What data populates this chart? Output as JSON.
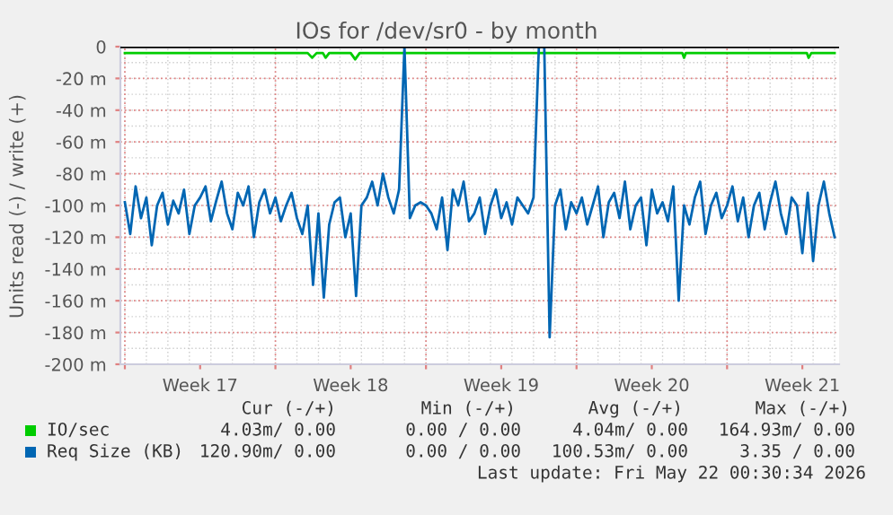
{
  "chart_data": {
    "type": "line",
    "title": "IOs for /dev/sr0 - by month",
    "ylabel": "Units read (-) / write (+)",
    "xlim": [
      "2026-04-19T19:00",
      "2026-05-23T05:00"
    ],
    "ylim": [
      -200,
      0
    ],
    "xticks": [
      {
        "value": "2026-04-20",
        "label": null
      },
      {
        "value": "2026-04-23T12:00",
        "label": "Week 17"
      },
      {
        "value": "2026-04-27",
        "label": null
      },
      {
        "value": "2026-04-30T12:00",
        "label": "Week 18"
      },
      {
        "value": "2026-05-04",
        "label": null
      },
      {
        "value": "2026-05-07T12:00",
        "label": "Week 19"
      },
      {
        "value": "2026-05-11",
        "label": null
      },
      {
        "value": "2026-05-14T12:00",
        "label": "Week 20"
      },
      {
        "value": "2026-05-18",
        "label": null
      },
      {
        "value": "2026-05-21T12:00",
        "label": "Week 21"
      }
    ],
    "yticks": [
      {
        "value": 0,
        "label": "0"
      },
      {
        "value": -20,
        "label": "-20 m"
      },
      {
        "value": -40,
        "label": "-40 m"
      },
      {
        "value": -60,
        "label": "-60 m"
      },
      {
        "value": -80,
        "label": "-80 m"
      },
      {
        "value": -100,
        "label": "-100 m"
      },
      {
        "value": -120,
        "label": "-120 m"
      },
      {
        "value": -140,
        "label": "-140 m"
      },
      {
        "value": -160,
        "label": "-160 m"
      },
      {
        "value": -180,
        "label": "-180 m"
      },
      {
        "value": -200,
        "label": "-200 m"
      }
    ],
    "grid": true,
    "legend": "bottom",
    "marker": "none",
    "line_style": "solid",
    "ref_lines": [
      {
        "axis": "y",
        "value": 0,
        "color": "#000000"
      }
    ],
    "series": [
      {
        "name": "IO/sec",
        "color": "#00cc00",
        "x": [
          "2026-04-20T00:00",
          "2026-04-28T12:00",
          "2026-04-28T17:00",
          "2026-04-28T22:00",
          "2026-04-29T05:00",
          "2026-04-29T08:00",
          "2026-04-29T12:00",
          "2026-04-30T12:00",
          "2026-04-30T17:00",
          "2026-04-30T22:00",
          "2026-05-15T22:00",
          "2026-05-16T00:00",
          "2026-05-16T02:00",
          "2026-05-21T17:00",
          "2026-05-21T19:00",
          "2026-05-21T22:00",
          "2026-05-23T00:00"
        ],
        "values": [
          -4,
          -4,
          -7,
          -4,
          -4,
          -7,
          -4,
          -4,
          -8,
          -4,
          -4,
          -7,
          -4,
          -4,
          -7,
          -4,
          -4
        ]
      },
      {
        "name": "Req Size (KB)",
        "color": "#0066b3",
        "x": [
          "2026-04-20T00:00",
          "2026-04-20T06:00",
          "2026-04-20T12:00",
          "2026-04-20T18:00",
          "2026-04-21T00:00",
          "2026-04-21T06:00",
          "2026-04-21T12:00",
          "2026-04-21T18:00",
          "2026-04-22T00:00",
          "2026-04-22T06:00",
          "2026-04-22T12:00",
          "2026-04-22T18:00",
          "2026-04-23T00:00",
          "2026-04-23T06:00",
          "2026-04-23T12:00",
          "2026-04-23T18:00",
          "2026-04-24T00:00",
          "2026-04-24T06:00",
          "2026-04-24T12:00",
          "2026-04-24T18:00",
          "2026-04-25T00:00",
          "2026-04-25T06:00",
          "2026-04-25T12:00",
          "2026-04-25T18:00",
          "2026-04-26T00:00",
          "2026-04-26T06:00",
          "2026-04-26T12:00",
          "2026-04-26T18:00",
          "2026-04-27T00:00",
          "2026-04-27T06:00",
          "2026-04-27T12:00",
          "2026-04-27T18:00",
          "2026-04-28T00:00",
          "2026-04-28T06:00",
          "2026-04-28T12:00",
          "2026-04-28T18:00",
          "2026-04-29T00:00",
          "2026-04-29T06:00",
          "2026-04-29T12:00",
          "2026-04-29T18:00",
          "2026-04-30T00:00",
          "2026-04-30T06:00",
          "2026-04-30T12:00",
          "2026-04-30T18:00",
          "2026-05-01T00:00",
          "2026-05-01T06:00",
          "2026-05-01T12:00",
          "2026-05-01T18:00",
          "2026-05-02T00:00",
          "2026-05-02T06:00",
          "2026-05-02T12:00",
          "2026-05-02T18:00",
          "2026-05-03T00:00",
          "2026-05-03T06:00",
          "2026-05-03T12:00",
          "2026-05-03T18:00",
          "2026-05-04T00:00",
          "2026-05-04T06:00",
          "2026-05-04T12:00",
          "2026-05-04T18:00",
          "2026-05-05T00:00",
          "2026-05-05T06:00",
          "2026-05-05T12:00",
          "2026-05-05T18:00",
          "2026-05-06T00:00",
          "2026-05-06T06:00",
          "2026-05-06T12:00",
          "2026-05-06T18:00",
          "2026-05-07T00:00",
          "2026-05-07T06:00",
          "2026-05-07T12:00",
          "2026-05-07T18:00",
          "2026-05-08T00:00",
          "2026-05-08T06:00",
          "2026-05-08T12:00",
          "2026-05-08T18:00",
          "2026-05-09T00:00",
          "2026-05-09T06:00",
          "2026-05-09T12:00",
          "2026-05-09T18:00",
          "2026-05-10T00:00",
          "2026-05-10T06:00",
          "2026-05-10T12:00",
          "2026-05-10T18:00",
          "2026-05-11T00:00",
          "2026-05-11T06:00",
          "2026-05-11T12:00",
          "2026-05-11T18:00",
          "2026-05-12T00:00",
          "2026-05-12T06:00",
          "2026-05-12T12:00",
          "2026-05-12T18:00",
          "2026-05-13T00:00",
          "2026-05-13T06:00",
          "2026-05-13T12:00",
          "2026-05-13T18:00",
          "2026-05-14T00:00",
          "2026-05-14T06:00",
          "2026-05-14T12:00",
          "2026-05-14T18:00",
          "2026-05-15T00:00",
          "2026-05-15T06:00",
          "2026-05-15T12:00",
          "2026-05-15T18:00",
          "2026-05-16T00:00",
          "2026-05-16T06:00",
          "2026-05-16T12:00",
          "2026-05-16T18:00",
          "2026-05-17T00:00",
          "2026-05-17T06:00",
          "2026-05-17T12:00",
          "2026-05-17T18:00",
          "2026-05-18T00:00",
          "2026-05-18T06:00",
          "2026-05-18T12:00",
          "2026-05-18T18:00",
          "2026-05-19T00:00",
          "2026-05-19T06:00",
          "2026-05-19T12:00",
          "2026-05-19T18:00",
          "2026-05-20T00:00",
          "2026-05-20T06:00",
          "2026-05-20T12:00",
          "2026-05-20T18:00",
          "2026-05-21T00:00",
          "2026-05-21T06:00",
          "2026-05-21T12:00",
          "2026-05-21T18:00",
          "2026-05-22T00:00",
          "2026-05-22T06:00",
          "2026-05-22T12:00",
          "2026-05-22T18:00",
          "2026-05-23T00:00"
        ],
        "values": [
          -98,
          -118,
          -88,
          -108,
          -95,
          -125,
          -100,
          -92,
          -112,
          -97,
          -105,
          -90,
          -118,
          -100,
          -95,
          -88,
          -110,
          -97,
          -85,
          -105,
          -115,
          -92,
          -100,
          -88,
          -120,
          -98,
          -90,
          -105,
          -95,
          -110,
          -100,
          -92,
          -108,
          -118,
          -100,
          -150,
          -105,
          -158,
          -112,
          -98,
          -95,
          -120,
          -105,
          -157,
          -100,
          -95,
          -85,
          -100,
          -80,
          -95,
          -105,
          -90,
          0,
          -108,
          -100,
          -98,
          -100,
          -105,
          -115,
          -95,
          -128,
          -90,
          -100,
          -85,
          -110,
          -105,
          -95,
          -118,
          -100,
          -90,
          -108,
          -98,
          -112,
          -95,
          -100,
          -105,
          -95,
          0,
          0,
          -183,
          -100,
          -90,
          -115,
          -98,
          -105,
          -95,
          -112,
          -100,
          -88,
          -120,
          -98,
          -92,
          -108,
          -85,
          -115,
          -100,
          -95,
          -125,
          -90,
          -105,
          -98,
          -110,
          -88,
          -160,
          -100,
          -112,
          -95,
          -85,
          -118,
          -100,
          -92,
          -108,
          -100,
          -88,
          -110,
          -95,
          -120,
          -100,
          -92,
          -115,
          -98,
          -85,
          -105,
          -118,
          -95,
          -100,
          -130,
          -92,
          -135,
          -100,
          -85,
          -105,
          -120
        ]
      }
    ],
    "annotations": [
      "Cur (-/+)",
      "Min (-/+)",
      "Avg (-/+)",
      "Max (-/+)",
      "4.03m/ 0.00",
      "0.00 / 0.00",
      "4.04m/ 0.00",
      "164.93m/ 0.00",
      "120.90m/ 0.00",
      "0.00 / 0.00",
      "100.53m/ 0.00",
      "3.35 / 0.00",
      "Last update: Fri May 22 00:30:34 2026"
    ]
  }
}
